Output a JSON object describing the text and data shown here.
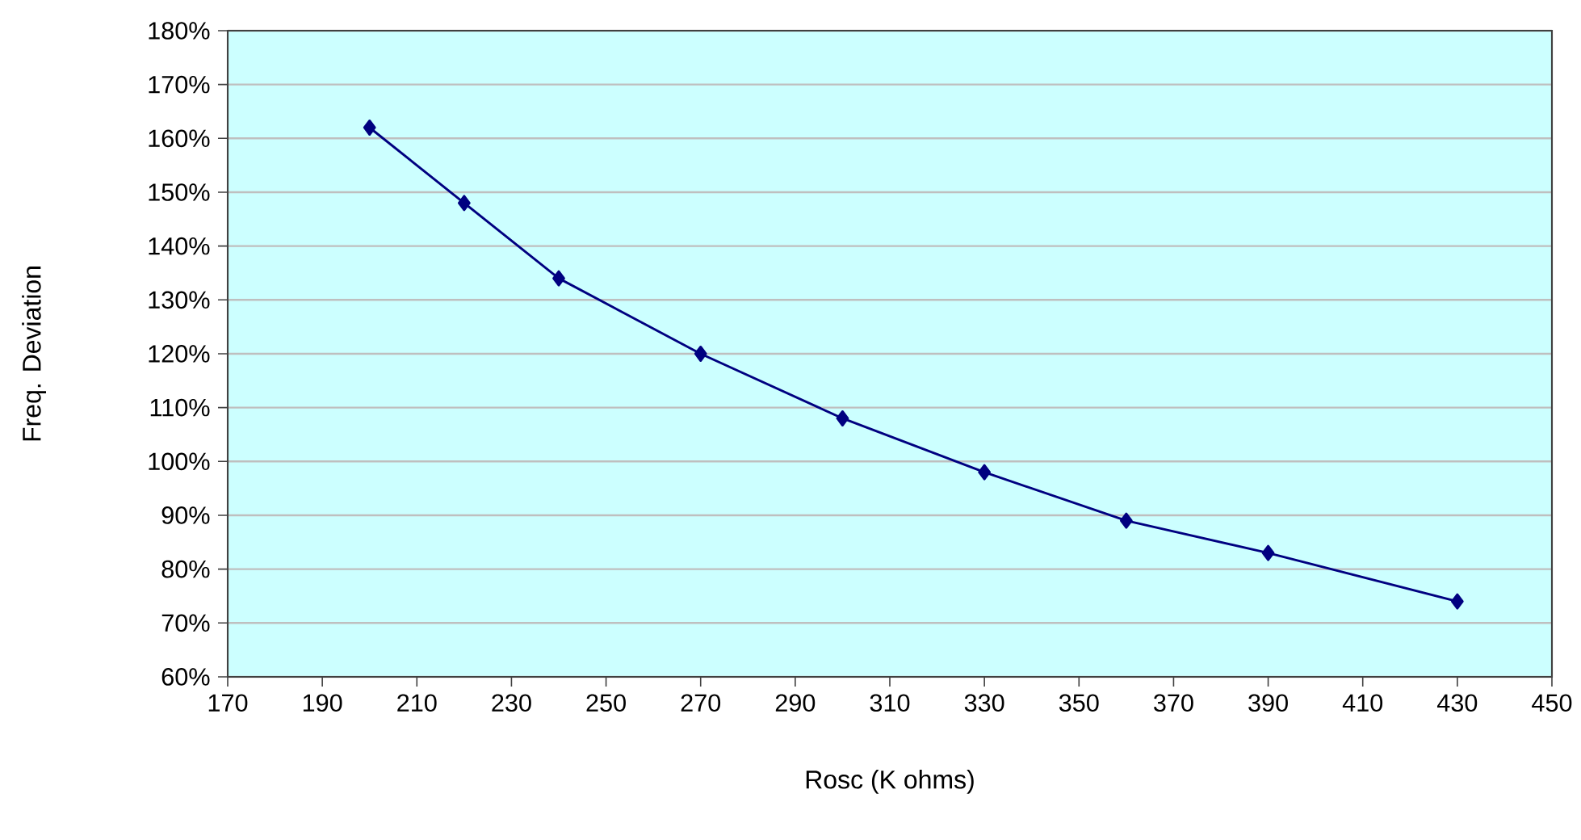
{
  "chart_data": {
    "type": "line",
    "xlabel": "Rosc (K ohms)",
    "ylabel": "Freq. Deviation",
    "x": [
      200,
      220,
      240,
      270,
      300,
      330,
      360,
      390,
      430
    ],
    "series": [
      {
        "color": "#000080",
        "values": [
          162,
          148,
          134,
          120,
          108,
          98,
          89,
          83,
          74
        ]
      }
    ],
    "xlim": [
      170,
      450
    ],
    "ylim": [
      60,
      180
    ],
    "xticks": [
      170,
      190,
      210,
      230,
      250,
      270,
      290,
      310,
      330,
      350,
      370,
      390,
      410,
      430,
      450
    ],
    "yticks": [
      {
        "value": 60,
        "label": "60%"
      },
      {
        "value": 70,
        "label": "70%"
      },
      {
        "value": 80,
        "label": "80%"
      },
      {
        "value": 90,
        "label": "90%"
      },
      {
        "value": 100,
        "label": "100%"
      },
      {
        "value": 110,
        "label": "110%"
      },
      {
        "value": 120,
        "label": "120%"
      },
      {
        "value": 130,
        "label": "130%"
      },
      {
        "value": 140,
        "label": "140%"
      },
      {
        "value": 150,
        "label": "150%"
      },
      {
        "value": 160,
        "label": "160%"
      },
      {
        "value": 170,
        "label": "170%"
      },
      {
        "value": 180,
        "label": "180%"
      }
    ],
    "grid": "y",
    "marker": "diamond"
  }
}
